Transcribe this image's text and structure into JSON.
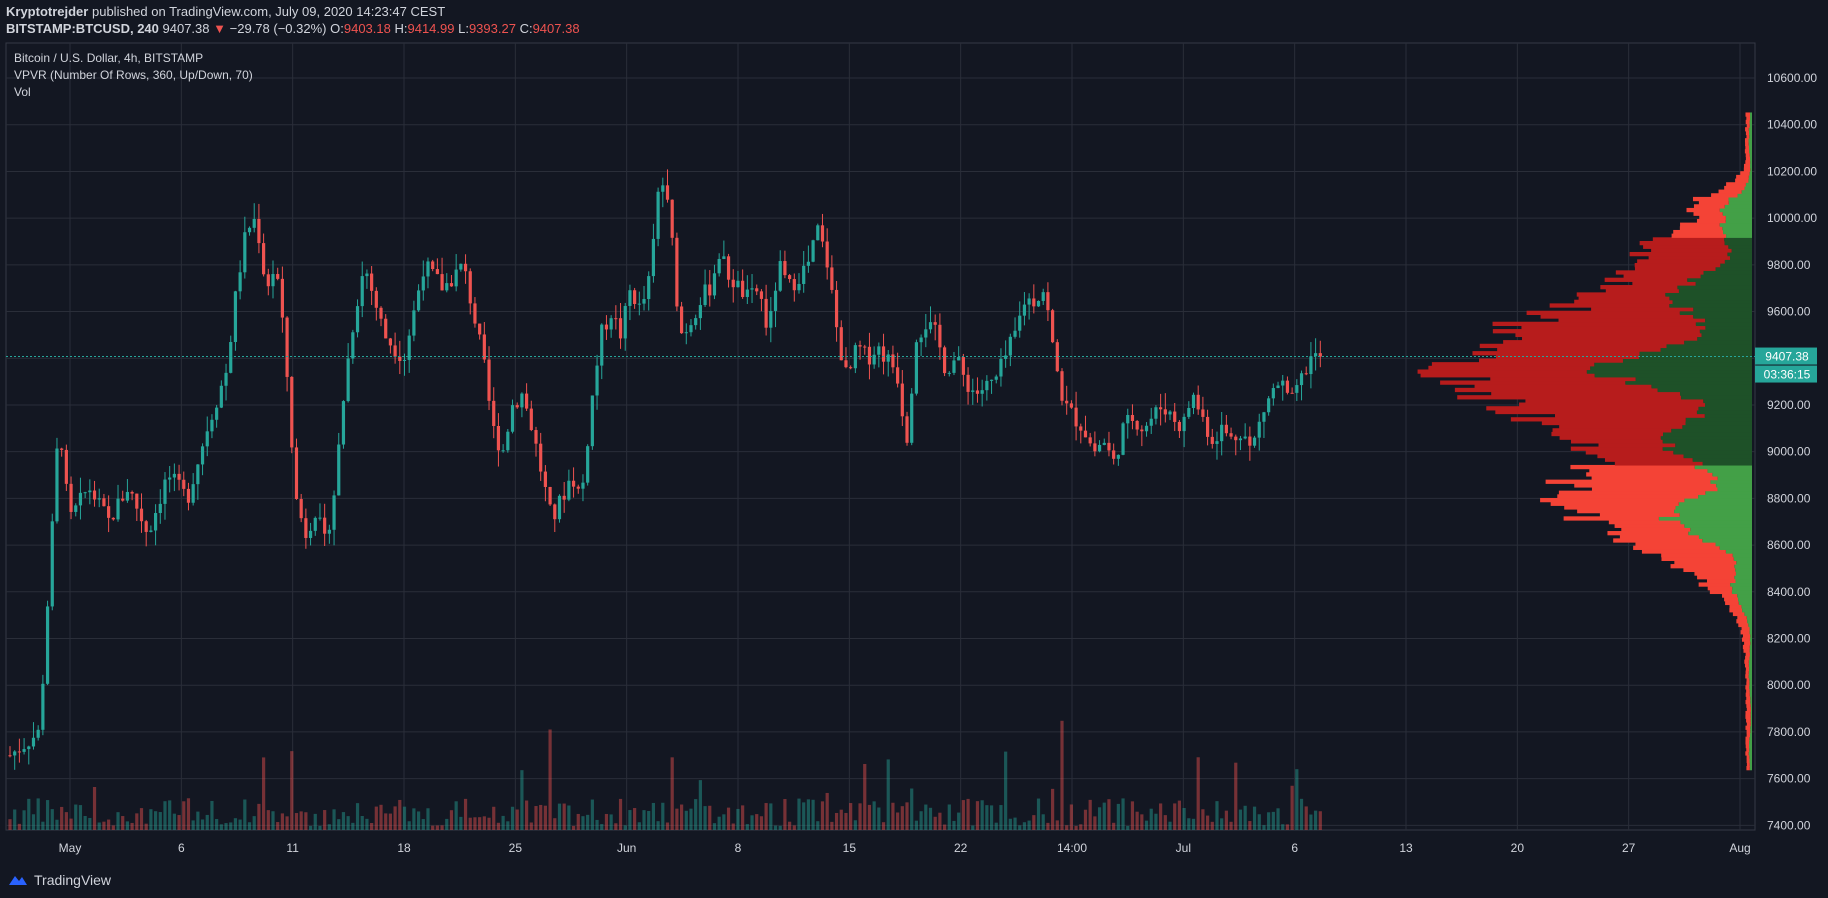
{
  "header": {
    "author": "Kryptotrejder",
    "published_text": "published on TradingView.com, July 09, 2020 14:23:47 CEST",
    "symbol": "BITSTAMP:BTCUSD, 240",
    "last": "9407.38",
    "change": "−29.78 (−0.32%)",
    "o_label": "O:",
    "o": "9403.18",
    "h_label": "H:",
    "h": "9414.99",
    "l_label": "L:",
    "l": "9393.27",
    "c_label": "C:",
    "c": "9407.38"
  },
  "legend": {
    "title": "Bitcoin / U.S. Dollar, 4h, BITSTAMP",
    "indicator": "VPVR (Number Of Rows, 360, Up/Down, 70)",
    "volume": "Vol"
  },
  "price_badge": "9407.38",
  "countdown_badge": "03:36:15",
  "footer": {
    "brand": "TradingView"
  },
  "colors": {
    "up": "#26a69a",
    "down": "#ef5350",
    "background": "#131722",
    "grid": "#2a2e39",
    "vp_up_va": "#1e5128",
    "vp_down_va": "#b71c1c",
    "vp_up": "#43a047",
    "vp_down": "#f44336"
  },
  "chart_data": {
    "type": "candlestick",
    "interval": "4h",
    "ylim": [
      7380,
      10750
    ],
    "y_ticks": [
      "10600.00",
      "10400.00",
      "10200.00",
      "10000.00",
      "9800.00",
      "9600.00",
      "9400.00",
      "9200.00",
      "9000.00",
      "8800.00",
      "8600.00",
      "8400.00",
      "8200.00",
      "8000.00",
      "7800.00",
      "7600.00",
      "7400.00"
    ],
    "x_ticks": [
      "May",
      "6",
      "11",
      "18",
      "25",
      "Jun",
      "8",
      "15",
      "22",
      "14:00",
      "Jul",
      "6",
      "13",
      "20",
      "27",
      "Aug"
    ],
    "price_path": [
      [
        0,
        7700
      ],
      [
        3,
        7800
      ],
      [
        5,
        9150
      ],
      [
        6,
        8700
      ],
      [
        8,
        8850
      ],
      [
        10,
        8700
      ],
      [
        12,
        8850
      ],
      [
        14,
        8650
      ],
      [
        16,
        8900
      ],
      [
        18,
        8800
      ],
      [
        20,
        9100
      ],
      [
        22,
        9350
      ],
      [
        23,
        9700
      ],
      [
        24,
        9950
      ],
      [
        25,
        10000
      ],
      [
        26,
        9700
      ],
      [
        27,
        9800
      ],
      [
        28,
        9400
      ],
      [
        29,
        8800
      ],
      [
        30,
        8650
      ],
      [
        31,
        8750
      ],
      [
        32,
        8600
      ],
      [
        33,
        8850
      ],
      [
        34,
        9300
      ],
      [
        35,
        9600
      ],
      [
        36,
        9800
      ],
      [
        37,
        9650
      ],
      [
        38,
        9500
      ],
      [
        40,
        9400
      ],
      [
        41,
        9600
      ],
      [
        42,
        9800
      ],
      [
        44,
        9700
      ],
      [
        46,
        9800
      ],
      [
        47,
        9600
      ],
      [
        48,
        9400
      ],
      [
        49,
        9100
      ],
      [
        50,
        9000
      ],
      [
        51,
        9200
      ],
      [
        52,
        9250
      ],
      [
        53,
        9100
      ],
      [
        54,
        8900
      ],
      [
        55,
        8700
      ],
      [
        56,
        8800
      ],
      [
        57,
        8900
      ],
      [
        58,
        8800
      ],
      [
        59,
        9200
      ],
      [
        60,
        9500
      ],
      [
        61,
        9600
      ],
      [
        62,
        9500
      ],
      [
        63,
        9700
      ],
      [
        64,
        9600
      ],
      [
        65,
        9750
      ],
      [
        66,
        10200
      ],
      [
        67,
        10000
      ],
      [
        68,
        9500
      ],
      [
        69,
        9550
      ],
      [
        70,
        9650
      ],
      [
        71,
        9700
      ],
      [
        72,
        9850
      ],
      [
        73,
        9750
      ],
      [
        75,
        9650
      ],
      [
        76,
        9700
      ],
      [
        77,
        9500
      ],
      [
        78,
        9800
      ],
      [
        79,
        9700
      ],
      [
        80,
        9750
      ],
      [
        81,
        9800
      ],
      [
        82,
        9950
      ],
      [
        83,
        9800
      ],
      [
        84,
        9500
      ],
      [
        85,
        9300
      ],
      [
        86,
        9450
      ],
      [
        87,
        9400
      ],
      [
        88,
        9450
      ],
      [
        90,
        9350
      ],
      [
        91,
        9050
      ],
      [
        92,
        9500
      ],
      [
        93,
        9550
      ],
      [
        94,
        9500
      ],
      [
        95,
        9350
      ],
      [
        96,
        9400
      ],
      [
        97,
        9300
      ],
      [
        98,
        9250
      ],
      [
        100,
        9300
      ],
      [
        101,
        9400
      ],
      [
        102,
        9500
      ],
      [
        103,
        9650
      ],
      [
        104,
        9650
      ],
      [
        105,
        9700
      ],
      [
        106,
        9400
      ],
      [
        107,
        9200
      ],
      [
        108,
        9150
      ],
      [
        109,
        9100
      ],
      [
        110,
        9000
      ],
      [
        111,
        9050
      ],
      [
        112,
        8950
      ],
      [
        113,
        9100
      ],
      [
        114,
        9150
      ],
      [
        115,
        9100
      ],
      [
        116,
        9150
      ],
      [
        117,
        9200
      ],
      [
        118,
        9150
      ],
      [
        119,
        9100
      ],
      [
        120,
        9250
      ],
      [
        121,
        9150
      ],
      [
        122,
        9050
      ],
      [
        123,
        9100
      ],
      [
        124,
        9050
      ],
      [
        125,
        9100
      ],
      [
        126,
        9000
      ],
      [
        127,
        9150
      ],
      [
        128,
        9250
      ],
      [
        129,
        9300
      ],
      [
        130,
        9200
      ],
      [
        131,
        9300
      ],
      [
        132,
        9400
      ],
      [
        133,
        9407.38
      ]
    ],
    "volume_profile_note": "VPVR up/down histogram drawn at right edge"
  }
}
